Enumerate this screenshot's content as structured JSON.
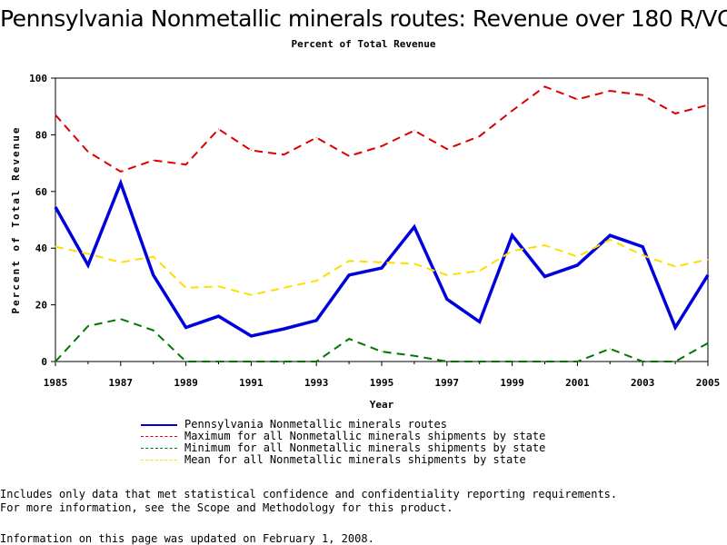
{
  "page": {
    "notes": [
      "Includes only data that met statistical confidence and confidentiality reporting requirements.",
      "For more information, see the Scope and Methodology for this product."
    ],
    "updated": "Information on this page was updated on February 1, 2008."
  },
  "chart_data": {
    "type": "line",
    "title": "Pennsylvania Nonmetallic minerals routes: Revenue over 180 R/VC",
    "subtitle": "Percent of Total Revenue",
    "xlabel": "Year",
    "ylabel": "Percent of Total Revenue",
    "xlim": [
      1985,
      2005
    ],
    "ylim": [
      0,
      100
    ],
    "x_ticks": [
      "1985",
      "1987",
      "1989",
      "1991",
      "1993",
      "1995",
      "1997",
      "1999",
      "2001",
      "2003",
      "2005"
    ],
    "y_ticks": [
      "0",
      "20",
      "40",
      "60",
      "80",
      "100"
    ],
    "grid": false,
    "legend_position": "bottom",
    "x": [
      1985,
      1986,
      1987,
      1988,
      1989,
      1990,
      1991,
      1992,
      1993,
      1994,
      1995,
      1996,
      1997,
      1998,
      1999,
      2000,
      2001,
      2002,
      2003,
      2004,
      2005
    ],
    "series": [
      {
        "name": "Pennsylvania Nonmetallic minerals routes",
        "color": "#0000dd",
        "style": "solid",
        "values": [
          54.5,
          34,
          63,
          30.5,
          12,
          16,
          9,
          11.5,
          14.5,
          30.5,
          33,
          47.5,
          22,
          14,
          44.5,
          30,
          34,
          44.5,
          40.5,
          12,
          30.5
        ]
      },
      {
        "name": "Maximum for all Nonmetallic minerals shipments by state",
        "color": "#dd0000",
        "style": "dashed",
        "values": [
          87,
          74,
          67,
          71,
          69.5,
          82,
          74.5,
          73,
          79,
          72.5,
          76,
          81.5,
          75,
          79.5,
          88.5,
          97,
          92.5,
          95.5,
          94,
          87.5,
          90.5
        ]
      },
      {
        "name": "Minimum for all Nonmetallic minerals shipments by state",
        "color": "#007700",
        "style": "dashed",
        "values": [
          0,
          12.5,
          15,
          11,
          0,
          0,
          0,
          0,
          0,
          8,
          3.5,
          2,
          0,
          0,
          0,
          0,
          0,
          4.5,
          0,
          0,
          6.5
        ]
      },
      {
        "name": "Mean for all Nonmetallic minerals shipments by state",
        "color": "#ffdd00",
        "style": "dashed",
        "values": [
          40.5,
          38,
          35,
          37,
          26,
          26.5,
          23.5,
          26,
          28.5,
          35.5,
          35,
          34.5,
          30.5,
          32,
          39,
          41,
          37,
          43,
          37.5,
          33.5,
          36
        ]
      }
    ]
  }
}
